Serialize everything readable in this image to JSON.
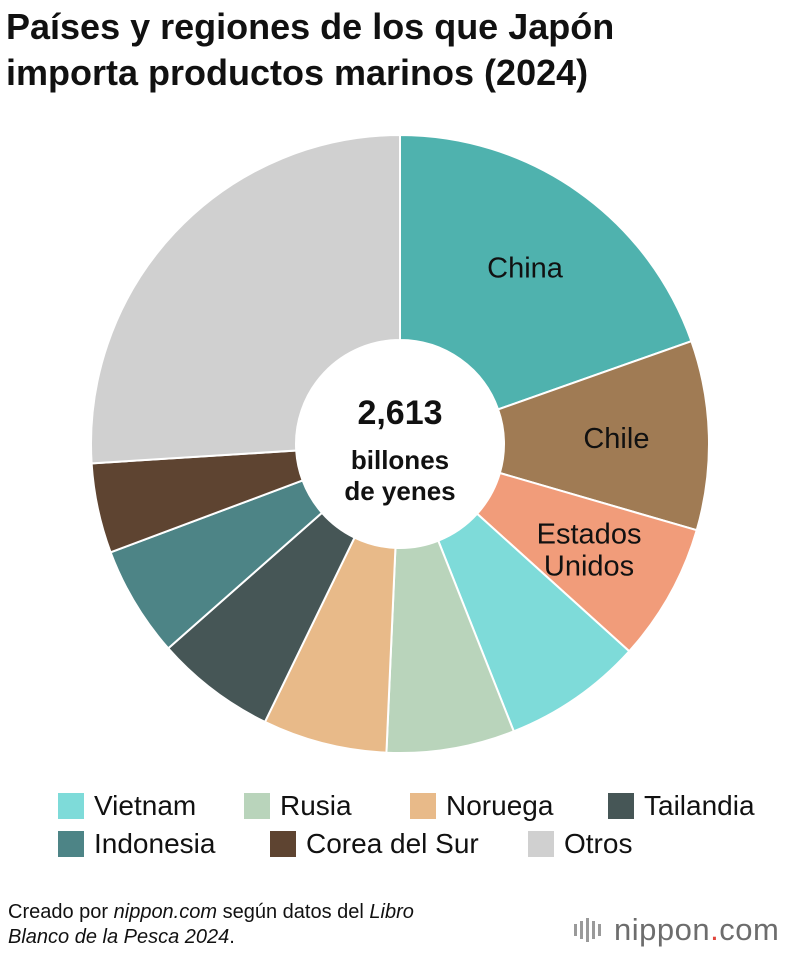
{
  "title": {
    "line1": "Países y regiones de los que Japón",
    "line2": "importa productos marinos (2024)"
  },
  "chart_data": {
    "type": "pie",
    "donut": true,
    "title": "Países y regiones de los que Japón importa productos marinos (2024)",
    "center_label": {
      "value": "2,613",
      "line1": "billones",
      "line2": "de yenes"
    },
    "slices": [
      {
        "label": "China",
        "value": 19.6,
        "color": "#4FB2AE",
        "label_on_chart": [
          "China"
        ],
        "label_color": "#111111"
      },
      {
        "label": "Chile",
        "value": 9.9,
        "color": "#A07B54",
        "label_on_chart": [
          "Chile"
        ],
        "label_color": "#111111"
      },
      {
        "label": "Estados Unidos",
        "value": 7.2,
        "color": "#F19C7A",
        "label_on_chart": [
          "Estados",
          "Unidos"
        ],
        "label_color": "#111111"
      },
      {
        "label": "Vietnam",
        "value": 7.3,
        "color": "#7EDBD9"
      },
      {
        "label": "Rusia",
        "value": 6.7,
        "color": "#B9D4BB"
      },
      {
        "label": "Noruega",
        "value": 6.5,
        "color": "#E8BA89"
      },
      {
        "label": "Tailandia",
        "value": 6.3,
        "color": "#465656"
      },
      {
        "label": "Indonesia",
        "value": 5.8,
        "color": "#4D8486"
      },
      {
        "label": "Corea del Sur",
        "value": 4.7,
        "color": "#5E4431"
      },
      {
        "label": "Otros",
        "value": 26.0,
        "color": "#D0D0D0"
      }
    ]
  },
  "legend": {
    "items": [
      {
        "label": "Vietnam",
        "color": "#7EDBD9"
      },
      {
        "label": "Rusia",
        "color": "#B9D4BB"
      },
      {
        "label": "Noruega",
        "color": "#E8BA89"
      },
      {
        "label": "Tailandia",
        "color": "#465656"
      },
      {
        "label": "Indonesia",
        "color": "#4D8486"
      },
      {
        "label": "Corea del Sur",
        "color": "#5E4431"
      },
      {
        "label": "Otros",
        "color": "#D0D0D0"
      }
    ]
  },
  "footer": {
    "prefix": "Creado por ",
    "site": "nippon.com",
    "middle": " según datos del ",
    "source_line1": "Libro",
    "source_line2": "Blanco de la Pesca 2024",
    "suffix": "."
  },
  "logo": {
    "word": "nippon",
    "dot": ".",
    "tld": "com",
    "icon": "signal-bars-icon"
  }
}
